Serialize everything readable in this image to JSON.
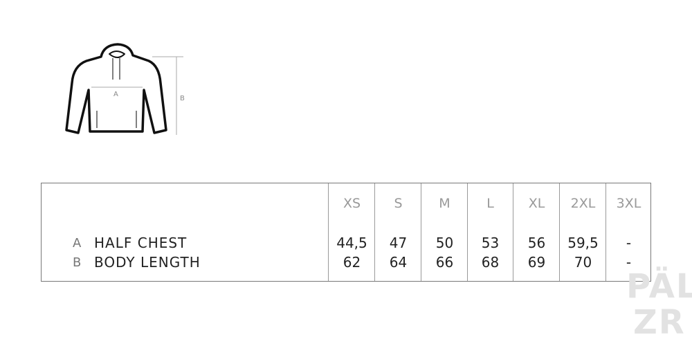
{
  "diagram": {
    "measure_a": "A",
    "measure_b": "B"
  },
  "table": {
    "sizes": [
      "XS",
      "S",
      "M",
      "L",
      "XL",
      "2XL",
      "3XL"
    ],
    "rows": [
      {
        "letter": "A",
        "label": "HALF CHEST",
        "values": [
          "44,5",
          "47",
          "50",
          "53",
          "56",
          "59,5",
          "-"
        ]
      },
      {
        "letter": "B",
        "label": "BODY LENGTH",
        "values": [
          "62",
          "64",
          "66",
          "68",
          "69",
          "70",
          "-"
        ]
      }
    ]
  },
  "logo": {
    "line1": "PÄL",
    "line2": "ZR"
  }
}
